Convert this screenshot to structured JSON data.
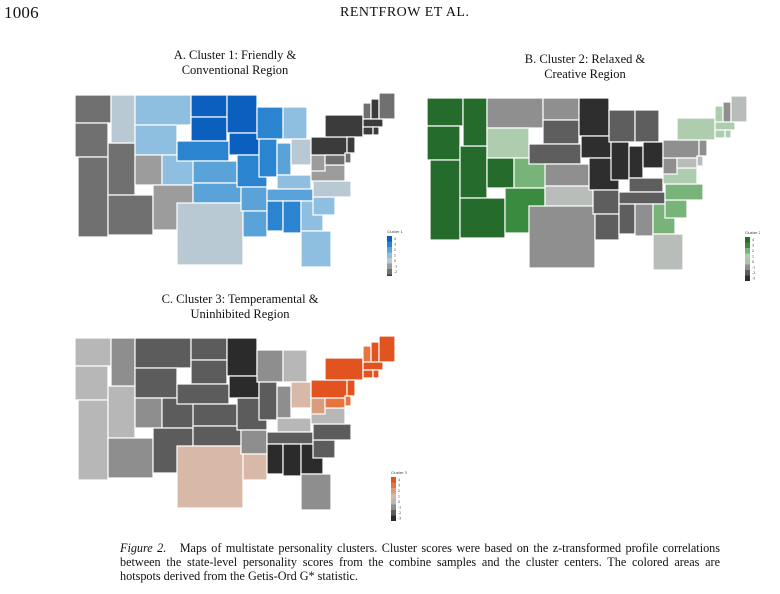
{
  "header": {
    "page_number": "1006",
    "running_head": "RENTFROW ET AL."
  },
  "panels": [
    {
      "id": "A",
      "title_line1": "A. Cluster 1: Friendly &",
      "title_line2": "Conventional Region",
      "legend_title": "Cluster 1",
      "legend_ticks": [
        "4",
        "3",
        "2",
        "1",
        "0",
        "-1",
        "-2",
        "-3"
      ],
      "palette": [
        "#0a5fbf",
        "#2b84d0",
        "#5aa3d9",
        "#8fbfe0",
        "#b9c9d3",
        "#9c9c9c",
        "#707070",
        "#3b3b3b"
      ]
    },
    {
      "id": "B",
      "title_line1": "B. Cluster 2: Relaxed &",
      "title_line2": "Creative Region",
      "legend_title": "Cluster 2",
      "legend_ticks": [
        "4",
        "3",
        "2",
        "1",
        "0",
        "-1",
        "-2",
        "-3"
      ],
      "palette": [
        "#256b2c",
        "#3a8a40",
        "#78b37a",
        "#aecdae",
        "#b9bdb9",
        "#8f8f8f",
        "#5e5e5e",
        "#2e2e2e"
      ]
    },
    {
      "id": "C",
      "title_line1": "C. Cluster 3: Temperamental &",
      "title_line2": "Uninhibited Region",
      "legend_title": "Cluster 3",
      "legend_ticks": [
        "4",
        "3",
        "2",
        "1",
        "0",
        "-1",
        "-2",
        "-3"
      ],
      "palette": [
        "#e2531f",
        "#e8753f",
        "#d99c7c",
        "#d8b8a6",
        "#b7b7b7",
        "#8e8e8e",
        "#5c5c5c",
        "#2b2b2b"
      ]
    }
  ],
  "caption": {
    "figure_label": "Figure 2.",
    "text": "Maps of multistate personality clusters. Cluster scores were based on the z-transformed profile correlations between the state-level personality scores from the combine samples and the cluster centers. The colored areas are hotspots derived from the Getis-Ord G* statistic."
  }
}
